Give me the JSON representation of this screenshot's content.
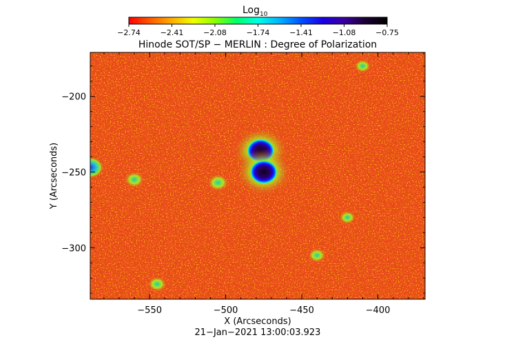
{
  "colorbar": {
    "title": "Log",
    "title_sub": "10",
    "ticks": [
      "−2.74",
      "−2.41",
      "−2.08",
      "−1.74",
      "−1.41",
      "−1.08",
      "−0.75"
    ],
    "colors": [
      "#ff0000",
      "#ff5a00",
      "#ffae00",
      "#f0ff00",
      "#8cff00",
      "#00ff6a",
      "#00ffe6",
      "#00b4ff",
      "#0050ff",
      "#1a00e6",
      "#3a00a0",
      "#1a0030",
      "#000000"
    ]
  },
  "chart_data": {
    "type": "heatmap",
    "title": "Hinode SOT/SP − MERLIN : Degree of Polarization",
    "xlabel": "X (Arcseconds)",
    "ylabel": "Y (Arcseconds)",
    "xlim": [
      -589,
      -369
    ],
    "ylim": [
      -334,
      -171
    ],
    "x_ticks": [
      -550,
      -500,
      -450,
      -400
    ],
    "x_tick_labels": [
      "−550",
      "−500",
      "−450",
      "−400"
    ],
    "y_ticks": [
      -200,
      -250,
      -300
    ],
    "y_tick_labels": [
      "−200",
      "−250",
      "−300"
    ],
    "color_scale": "log10",
    "color_range": [
      -2.74,
      -0.75
    ],
    "background_color": "#e84a1c",
    "features": [
      {
        "kind": "sunspot",
        "x": -477,
        "y": -236,
        "level": 0.95
      },
      {
        "kind": "sunspot",
        "x": -475,
        "y": -250,
        "level": 0.95
      },
      {
        "kind": "plage",
        "x": -589,
        "y": -247,
        "level": 0.85
      },
      {
        "kind": "plage",
        "x": -505,
        "y": -257,
        "level": 0.6
      },
      {
        "kind": "plage",
        "x": -560,
        "y": -255,
        "level": 0.55
      },
      {
        "kind": "plage",
        "x": -545,
        "y": -324,
        "level": 0.5
      },
      {
        "kind": "plage",
        "x": -440,
        "y": -305,
        "level": 0.45
      },
      {
        "kind": "plage",
        "x": -420,
        "y": -280,
        "level": 0.4
      },
      {
        "kind": "plage",
        "x": -410,
        "y": -180,
        "level": 0.4
      }
    ]
  },
  "timestamp": "21−Jan−2021 13:00:03.923"
}
